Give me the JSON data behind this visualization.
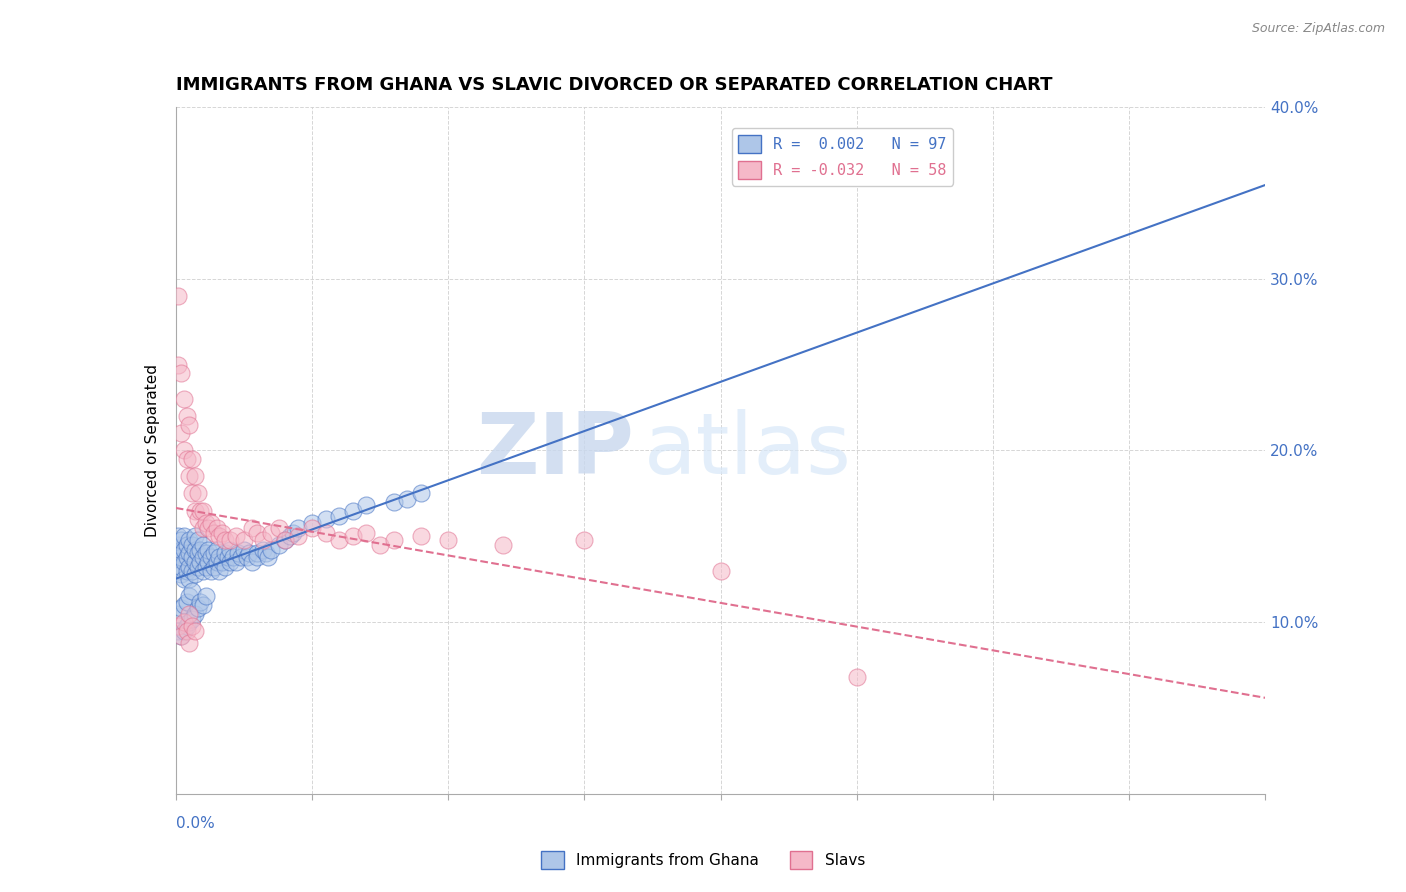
{
  "title": "IMMIGRANTS FROM GHANA VS SLAVIC DIVORCED OR SEPARATED CORRELATION CHART",
  "source_text": "Source: ZipAtlas.com",
  "ylabel": "Divorced or Separated",
  "xlim": [
    0.0,
    0.4
  ],
  "ylim": [
    0.0,
    0.4
  ],
  "yticks_right": [
    0.1,
    0.2,
    0.3,
    0.4
  ],
  "ytick_labels_right": [
    "10.0%",
    "20.0%",
    "30.0%",
    "40.0%"
  ],
  "xticks": [
    0.0,
    0.05,
    0.1,
    0.15,
    0.2,
    0.25,
    0.3,
    0.35,
    0.4
  ],
  "series": [
    {
      "label": "Immigrants from Ghana",
      "R": 0.002,
      "N": 97,
      "color": "#aec6e8",
      "edge_color": "#4472c4",
      "line_color": "#4472c4",
      "line_style": "-"
    },
    {
      "label": "Slavs",
      "R": -0.032,
      "N": 58,
      "color": "#f5b8c8",
      "edge_color": "#e07090",
      "line_color": "#e07090",
      "line_style": "-"
    }
  ],
  "legend_R_labels": [
    "R =  0.002   N = 97",
    "R = -0.032   N = 58"
  ],
  "watermark_zip": "ZIP",
  "watermark_atlas": "atlas",
  "background_color": "#ffffff",
  "grid_color": "#cccccc",
  "title_fontsize": 13,
  "axis_label_fontsize": 11,
  "tick_fontsize": 11,
  "blue_x": [
    0.001,
    0.001,
    0.001,
    0.001,
    0.002,
    0.002,
    0.002,
    0.002,
    0.002,
    0.003,
    0.003,
    0.003,
    0.003,
    0.004,
    0.004,
    0.004,
    0.005,
    0.005,
    0.005,
    0.005,
    0.006,
    0.006,
    0.006,
    0.007,
    0.007,
    0.007,
    0.007,
    0.008,
    0.008,
    0.008,
    0.009,
    0.009,
    0.01,
    0.01,
    0.01,
    0.011,
    0.011,
    0.012,
    0.012,
    0.013,
    0.013,
    0.014,
    0.014,
    0.015,
    0.015,
    0.016,
    0.016,
    0.017,
    0.018,
    0.018,
    0.019,
    0.02,
    0.02,
    0.021,
    0.022,
    0.023,
    0.024,
    0.025,
    0.026,
    0.027,
    0.028,
    0.03,
    0.03,
    0.032,
    0.033,
    0.034,
    0.035,
    0.038,
    0.04,
    0.042,
    0.043,
    0.045,
    0.05,
    0.055,
    0.06,
    0.065,
    0.07,
    0.08,
    0.085,
    0.09,
    0.001,
    0.001,
    0.002,
    0.002,
    0.003,
    0.003,
    0.004,
    0.004,
    0.005,
    0.005,
    0.006,
    0.006,
    0.007,
    0.008,
    0.009,
    0.01,
    0.011
  ],
  "blue_y": [
    0.13,
    0.14,
    0.145,
    0.15,
    0.128,
    0.132,
    0.138,
    0.142,
    0.148,
    0.125,
    0.135,
    0.142,
    0.15,
    0.13,
    0.138,
    0.145,
    0.125,
    0.132,
    0.14,
    0.148,
    0.13,
    0.138,
    0.145,
    0.128,
    0.135,
    0.142,
    0.15,
    0.132,
    0.14,
    0.148,
    0.135,
    0.142,
    0.13,
    0.138,
    0.145,
    0.132,
    0.14,
    0.135,
    0.142,
    0.13,
    0.138,
    0.132,
    0.14,
    0.135,
    0.142,
    0.13,
    0.138,
    0.135,
    0.132,
    0.14,
    0.138,
    0.135,
    0.142,
    0.138,
    0.135,
    0.14,
    0.138,
    0.142,
    0.138,
    0.14,
    0.135,
    0.14,
    0.138,
    0.142,
    0.14,
    0.138,
    0.142,
    0.145,
    0.148,
    0.15,
    0.152,
    0.155,
    0.158,
    0.16,
    0.162,
    0.165,
    0.168,
    0.17,
    0.172,
    0.175,
    0.095,
    0.105,
    0.092,
    0.108,
    0.095,
    0.11,
    0.098,
    0.112,
    0.1,
    0.115,
    0.102,
    0.118,
    0.105,
    0.108,
    0.112,
    0.11,
    0.115
  ],
  "pink_x": [
    0.001,
    0.001,
    0.002,
    0.002,
    0.003,
    0.003,
    0.004,
    0.004,
    0.005,
    0.005,
    0.006,
    0.006,
    0.007,
    0.007,
    0.008,
    0.008,
    0.009,
    0.01,
    0.01,
    0.011,
    0.012,
    0.013,
    0.014,
    0.015,
    0.016,
    0.017,
    0.018,
    0.02,
    0.022,
    0.025,
    0.028,
    0.03,
    0.032,
    0.035,
    0.038,
    0.04,
    0.045,
    0.05,
    0.055,
    0.06,
    0.065,
    0.07,
    0.075,
    0.08,
    0.09,
    0.1,
    0.12,
    0.15,
    0.2,
    0.25,
    0.001,
    0.002,
    0.003,
    0.004,
    0.005,
    0.005,
    0.006,
    0.007
  ],
  "pink_y": [
    0.29,
    0.25,
    0.245,
    0.21,
    0.23,
    0.2,
    0.22,
    0.195,
    0.215,
    0.185,
    0.195,
    0.175,
    0.185,
    0.165,
    0.175,
    0.16,
    0.165,
    0.155,
    0.165,
    0.158,
    0.155,
    0.158,
    0.152,
    0.155,
    0.15,
    0.152,
    0.148,
    0.148,
    0.15,
    0.148,
    0.155,
    0.152,
    0.148,
    0.152,
    0.155,
    0.148,
    0.15,
    0.155,
    0.152,
    0.148,
    0.15,
    0.152,
    0.145,
    0.148,
    0.15,
    0.148,
    0.145,
    0.148,
    0.13,
    0.068,
    0.098,
    0.092,
    0.1,
    0.095,
    0.105,
    0.088,
    0.098,
    0.095
  ]
}
